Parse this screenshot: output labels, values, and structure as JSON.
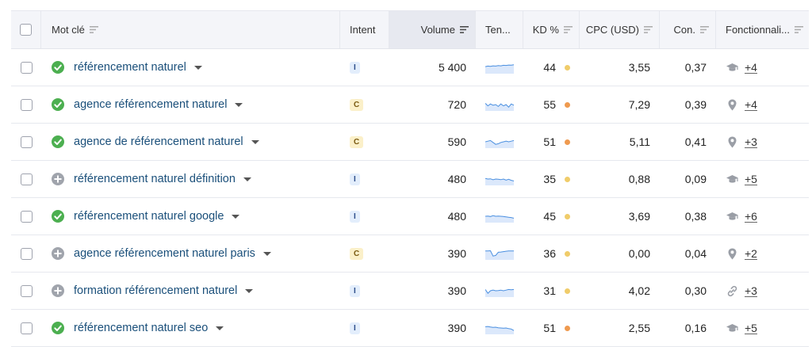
{
  "header": {
    "keyword": "Mot clé",
    "intent": "Intent",
    "volume": "Volume",
    "trend": "Ten...",
    "kd": "KD %",
    "cpc": "CPC (USD)",
    "con": "Con.",
    "features": "Fonctionnali..."
  },
  "colors": {
    "kd_easy": "#f0cc6a",
    "kd_hard": "#ef9a4f",
    "status_green": "#4caf50",
    "status_grey": "#a0a4ac"
  },
  "rows": [
    {
      "status": "check",
      "keyword": "référencement naturel",
      "intent": "I",
      "volume": "5 400",
      "kd": "44",
      "kd_level": "easy",
      "cpc": "3,55",
      "con": "0,37",
      "feature_icon": "graduation-cap-icon",
      "more": "+4",
      "trend": [
        0.55,
        0.6,
        0.58,
        0.62,
        0.6,
        0.64,
        0.62,
        0.66,
        0.65,
        0.68,
        0.67,
        0.7
      ]
    },
    {
      "status": "check",
      "keyword": "agence référencement naturel",
      "intent": "C",
      "volume": "720",
      "kd": "55",
      "kd_level": "hard",
      "cpc": "7,29",
      "con": "0,39",
      "feature_icon": "location-pin-icon",
      "more": "+4",
      "trend": [
        0.6,
        0.4,
        0.55,
        0.45,
        0.5,
        0.35,
        0.55,
        0.4,
        0.5,
        0.3,
        0.55,
        0.45
      ]
    },
    {
      "status": "check",
      "keyword": "agence de référencement naturel",
      "intent": "C",
      "volume": "590",
      "kd": "51",
      "kd_level": "hard",
      "cpc": "5,11",
      "con": "0,41",
      "feature_icon": "location-pin-icon",
      "more": "+3",
      "trend": [
        0.5,
        0.55,
        0.6,
        0.45,
        0.3,
        0.35,
        0.45,
        0.5,
        0.55,
        0.5,
        0.55,
        0.6
      ]
    },
    {
      "status": "plus",
      "keyword": "référencement naturel définition",
      "intent": "I",
      "volume": "480",
      "kd": "35",
      "kd_level": "easy",
      "cpc": "0,88",
      "con": "0,09",
      "feature_icon": "graduation-cap-icon",
      "more": "+5",
      "trend": [
        0.55,
        0.5,
        0.52,
        0.45,
        0.5,
        0.48,
        0.45,
        0.5,
        0.42,
        0.48,
        0.4,
        0.35
      ]
    },
    {
      "status": "check",
      "keyword": "référencement naturel google",
      "intent": "I",
      "volume": "480",
      "kd": "45",
      "kd_level": "easy",
      "cpc": "3,69",
      "con": "0,38",
      "feature_icon": "graduation-cap-icon",
      "more": "+6",
      "trend": [
        0.5,
        0.52,
        0.48,
        0.55,
        0.5,
        0.52,
        0.5,
        0.48,
        0.45,
        0.42,
        0.4,
        0.35
      ]
    },
    {
      "status": "plus",
      "keyword": "agence référencement naturel paris",
      "intent": "C",
      "volume": "390",
      "kd": "36",
      "kd_level": "easy",
      "cpc": "0,00",
      "con": "0,04",
      "feature_icon": "location-pin-icon",
      "more": "+2",
      "trend": [
        0.7,
        0.7,
        0.72,
        0.3,
        0.35,
        0.6,
        0.62,
        0.65,
        0.68,
        0.7,
        0.7,
        0.7
      ]
    },
    {
      "status": "plus",
      "keyword": "formation référencement naturel",
      "intent": "I",
      "volume": "390",
      "kd": "31",
      "kd_level": "easy",
      "cpc": "4,02",
      "con": "0,30",
      "feature_icon": "link-icon",
      "more": "+3",
      "trend": [
        0.6,
        0.3,
        0.5,
        0.55,
        0.5,
        0.52,
        0.55,
        0.5,
        0.55,
        0.6,
        0.58,
        0.6
      ]
    },
    {
      "status": "check",
      "keyword": "référencement naturel seo",
      "intent": "I",
      "volume": "390",
      "kd": "51",
      "kd_level": "hard",
      "cpc": "2,55",
      "con": "0,16",
      "feature_icon": "graduation-cap-icon",
      "more": "+5",
      "trend": [
        0.6,
        0.62,
        0.58,
        0.55,
        0.56,
        0.52,
        0.5,
        0.48,
        0.5,
        0.45,
        0.42,
        0.3
      ]
    }
  ]
}
